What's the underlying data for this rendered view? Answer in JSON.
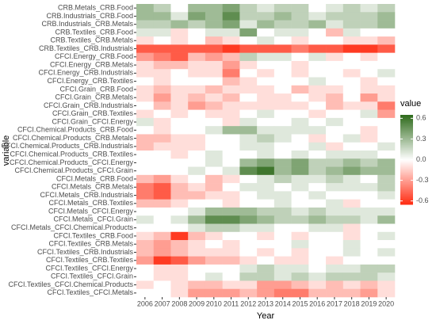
{
  "chart_data": {
    "type": "heatmap",
    "x_label": "Year",
    "y_label": "variable",
    "x": [
      "2006",
      "2007",
      "2008",
      "2009",
      "2010",
      "2011",
      "2012",
      "2013",
      "2014",
      "2015",
      "2016",
      "2017",
      "2018",
      "2019",
      "2020"
    ],
    "y": [
      "CRB.Metals_CRB.Food",
      "CRB.Industrials_CRB.Food",
      "CRB.Industrials_CRB.Metals",
      "CRB.Textiles_CRB.Food",
      "CRB.Textiles_CRB.Metals",
      "CRB.Textiles_CRB.Industrials",
      "CFCI.Energy_CRB.Food",
      "CFCI.Energy_CRB.Metals",
      "CFCI.Energy_CRB.Industrials",
      "CFCI.Energy_CRB.Textiles",
      "CFCI.Grain_CRB.Food",
      "CFCI.Grain_CRB.Metals",
      "CFCI.Grain_CRB.Industrials",
      "CFCI.Grain_CRB.Textiles",
      "CFCI.Grain_CFCI.Energy",
      "CFCI.Chemical.Products_CRB.Food",
      "CFCI.Chemical.Products_CRB.Metals",
      "CFCI.Chemical.Products_CRB.Industrials",
      "CFCI.Chemical.Products_CRB.Textiles",
      "CFCI.Chemical.Products_CFCI.Energy",
      "CFCI.Chemical.Products_CFCI.Grain",
      "CFCI.Metals_CRB.Food",
      "CFCI.Metals_CRB.Metals",
      "CFCI.Metals_CRB.Industrials",
      "CFCI.Metals_CRB.Textiles",
      "CFCI.Metals_CFCI.Energy",
      "CFCI.Metals_CFCI.Grain",
      "CFCI.Metals_CFCI.Chemical.Products",
      "CFCI.Textiles_CRB.Food",
      "CFCI.Textiles_CRB.Metals",
      "CFCI.Textiles_CRB.Industrials",
      "CFCI.Textiles_CRB.Textiles",
      "CFCI.Textiles_CFCI.Energy",
      "CFCI.Textiles_CFCI.Grain",
      "CFCI.Textiles_CFCI.Chemical.Products",
      "CFCI.Textiles_CFCI.Metals"
    ],
    "values": [
      [
        0.3,
        0.2,
        0,
        0.3,
        0.3,
        0.4,
        0.2,
        0.1,
        0.2,
        0.2,
        0,
        0.1,
        0.2,
        0.1,
        0.2
      ],
      [
        0.3,
        0.3,
        0.1,
        0.4,
        0.3,
        0.5,
        0.2,
        0.2,
        0.3,
        0.2,
        0.1,
        0.2,
        0.2,
        0.2,
        0.3
      ],
      [
        0.2,
        0.2,
        0.3,
        0.2,
        0.3,
        0.4,
        0.1,
        0.3,
        0.2,
        0.2,
        0.3,
        0.1,
        0.2,
        0.2,
        0.3
      ],
      [
        0.1,
        0.1,
        -0.1,
        0,
        0.1,
        0.1,
        0.4,
        0,
        0.1,
        0.1,
        0,
        -0.2,
        0.1,
        0,
        0
      ],
      [
        -0.1,
        0,
        -0.1,
        0,
        -0.2,
        -0.1,
        0,
        0.1,
        0,
        -0.1,
        0,
        0,
        -0.1,
        -0.1,
        -0.2
      ],
      [
        -0.5,
        -0.5,
        -0.5,
        -0.5,
        -0.5,
        -0.6,
        -0.5,
        -0.5,
        -0.5,
        -0.4,
        -0.5,
        -0.5,
        -0.6,
        -0.6,
        -0.5
      ],
      [
        -0.3,
        -0.4,
        -0.5,
        -0.2,
        -0.3,
        -0.2,
        0.2,
        0.1,
        0.1,
        0,
        0.1,
        -0.1,
        0,
        -0.1,
        0
      ],
      [
        -0.1,
        -0.2,
        -0.2,
        -0.1,
        -0.1,
        -0.3,
        -0.1,
        0,
        0,
        -0.1,
        0,
        0,
        0,
        0,
        0
      ],
      [
        -0.1,
        -0.1,
        0,
        -0.1,
        -0.1,
        -0.4,
        0,
        -0.1,
        0,
        -0.1,
        0,
        0,
        -0.1,
        0,
        0.1
      ],
      [
        0,
        -0.1,
        0,
        0,
        0,
        -0.2,
        -0.1,
        0,
        0,
        0,
        0.1,
        0,
        0,
        -0.1,
        0
      ],
      [
        -0.1,
        -0.2,
        -0.1,
        -0.1,
        -0.2,
        -0.1,
        -0.1,
        -0.1,
        0,
        -0.2,
        -0.1,
        -0.1,
        0,
        -0.1,
        -0.1
      ],
      [
        -0.1,
        -0.3,
        -0.1,
        -0.2,
        -0.1,
        -0.2,
        0,
        -0.1,
        -0.1,
        0,
        -0.1,
        -0.2,
        0,
        -0.3,
        -0.1
      ],
      [
        0,
        -0.2,
        -0.1,
        -0.3,
        -0.2,
        -0.1,
        -0.1,
        -0.1,
        -0.1,
        -0.1,
        0,
        -0.2,
        -0.1,
        -0.1,
        -0.4
      ],
      [
        -0.1,
        0,
        -0.1,
        0,
        -0.1,
        -0.1,
        0,
        0.1,
        0,
        0,
        -0.1,
        0,
        0,
        0.1,
        -0.3
      ],
      [
        0.1,
        -0.1,
        0,
        0,
        0,
        -0.1,
        0.1,
        0,
        0,
        0.1,
        0,
        0.1,
        0,
        0,
        0
      ],
      [
        0,
        -0.1,
        0,
        0,
        0.1,
        0.3,
        0.3,
        0.1,
        0.1,
        0.1,
        0.1,
        0,
        0,
        -0.1,
        0
      ],
      [
        -0.2,
        -0.2,
        -0.1,
        -0.1,
        0,
        0,
        0.1,
        0.2,
        0.1,
        0,
        -0.1,
        0,
        0.1,
        -0.1,
        0
      ],
      [
        -0.2,
        -0.1,
        -0.1,
        -0.1,
        0,
        0,
        0.1,
        0.1,
        0,
        0,
        0.1,
        -0.1,
        0,
        0,
        0.1
      ],
      [
        0,
        0,
        -0.1,
        0,
        0.1,
        0,
        0,
        0.1,
        0,
        0.1,
        0,
        0.1,
        0.1,
        0.1,
        0
      ],
      [
        0,
        0,
        0,
        0,
        0.1,
        0,
        0.3,
        0.4,
        0.3,
        0.4,
        0.2,
        0.2,
        0.3,
        0.2,
        0.3
      ],
      [
        0,
        0,
        0,
        0.1,
        0,
        0.1,
        0.5,
        0.6,
        0.3,
        0.4,
        0.2,
        0.3,
        0.4,
        0.3,
        0.3
      ],
      [
        -0.2,
        -0.3,
        -0.1,
        0,
        -0.2,
        -0.1,
        0,
        0.1,
        0.2,
        0.1,
        0.1,
        0.2,
        0.1,
        0,
        0.2
      ],
      [
        -0.4,
        -0.5,
        -0.2,
        -0.1,
        -0.2,
        0,
        0.1,
        0.1,
        0,
        0.1,
        0,
        0.1,
        0.1,
        0.1,
        0.2
      ],
      [
        -0.4,
        -0.5,
        -0.2,
        -0.2,
        -0.1,
        -0.1,
        0,
        0.1,
        0.1,
        0,
        0.1,
        0,
        0,
        0,
        0.1
      ],
      [
        -0.2,
        -0.2,
        -0.1,
        0,
        0,
        -0.1,
        0,
        0,
        0.1,
        0,
        0,
        0.1,
        -0.1,
        0,
        0
      ],
      [
        0,
        0,
        0,
        0.1,
        0.3,
        0.3,
        0.3,
        0.2,
        0.2,
        0.1,
        0.2,
        0.1,
        0.1,
        0.1,
        0.1
      ],
      [
        0.1,
        0,
        0.1,
        0.3,
        0.5,
        0.5,
        0.4,
        0.3,
        0.2,
        0.2,
        0.3,
        0.2,
        0.2,
        0.1,
        0.3
      ],
      [
        0,
        0,
        0,
        0.1,
        0.2,
        0.2,
        0.1,
        0.1,
        0,
        0,
        0.1,
        0.1,
        -0.1,
        0,
        0
      ],
      [
        -0.1,
        -0.2,
        -0.6,
        -0.2,
        -0.1,
        0,
        0,
        -0.1,
        0,
        -0.1,
        0,
        0,
        -0.1,
        0,
        0.1
      ],
      [
        -0.2,
        -0.3,
        -0.2,
        -0.1,
        0,
        -0.1,
        0,
        0,
        0,
        0.1,
        0,
        0,
        0.1,
        0,
        0
      ],
      [
        -0.2,
        -0.3,
        -0.2,
        -0.1,
        -0.1,
        -0.1,
        0,
        -0.1,
        0,
        -0.1,
        0,
        0,
        0.1,
        0,
        0.1
      ],
      [
        -0.3,
        -0.6,
        -0.5,
        -0.3,
        -0.2,
        -0.2,
        -0.1,
        0,
        -0.1,
        -0.1,
        0,
        -0.1,
        0,
        0,
        0
      ],
      [
        0,
        -0.1,
        -0.1,
        0,
        0,
        0,
        0.1,
        0.2,
        0.1,
        0.1,
        0,
        0.1,
        0.1,
        0.2,
        0.2
      ],
      [
        0,
        -0.1,
        -0.1,
        0,
        0.1,
        0,
        0.2,
        0.2,
        0.1,
        0.2,
        0.1,
        0.2,
        0.2,
        0.2,
        0.1
      ],
      [
        -0.1,
        0,
        -0.1,
        -0.2,
        -0.2,
        -0.1,
        -0.1,
        -0.3,
        -0.3,
        -0.2,
        -0.1,
        -0.2,
        -0.1,
        -0.2,
        -0.1
      ],
      [
        0,
        0,
        -0.1,
        -0.3,
        -0.3,
        -0.3,
        -0.2,
        -0.3,
        -0.4,
        -0.4,
        -0.2,
        -0.2,
        -0.2,
        -0.3,
        -0.1
      ]
    ],
    "legend_title": "value",
    "zlim": [
      -0.65,
      0.65
    ],
    "zticks": [
      0.6,
      0.3,
      {
        "value": 0,
        "label": "0.0"
      },
      -0.3,
      -0.6
    ],
    "colors": {
      "low": "#ff2a10",
      "mid": "#ffffff",
      "high": "#2f6b1c"
    }
  }
}
